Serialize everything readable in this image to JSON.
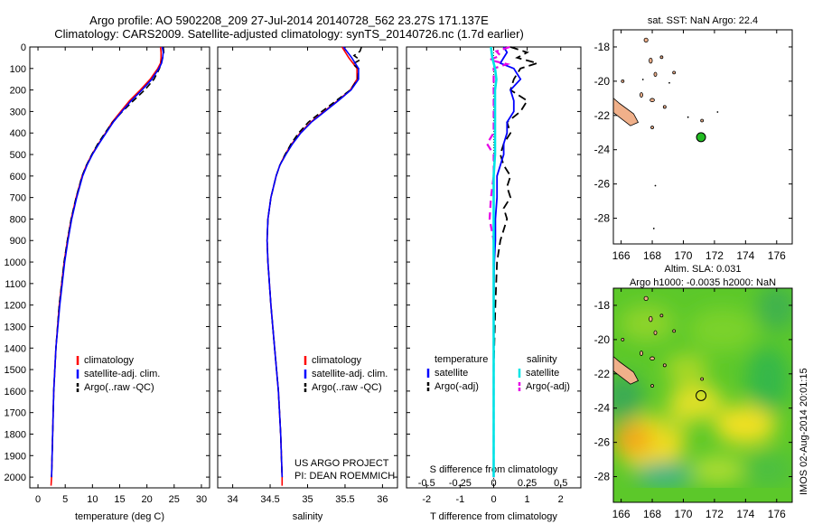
{
  "header": {
    "title_line1": "Argo profile: AO 5902208_209 27-Jul-2014 20140728_562 23.27S 171.137E",
    "title_line2": "Climatology: CARS2009. Satellite-adjusted climatology: synTS_20140726.nc (1.7d earlier)"
  },
  "depth_ticks": [
    "0",
    "100",
    "200",
    "300",
    "400",
    "500",
    "600",
    "700",
    "800",
    "900",
    "1000",
    "1100",
    "1200",
    "1300",
    "1400",
    "1500",
    "1600",
    "1700",
    "1800",
    "1900",
    "2000"
  ],
  "colors": {
    "climatology": "#ff0000",
    "satellite": "#0000ff",
    "argo": "#000000",
    "sal_satellite": "#00e5e5",
    "sal_argo": "#e600e6",
    "land": "#f0b08a"
  },
  "chart_data": [
    {
      "type": "line",
      "panel": "temperature",
      "xlabel": "temperature (deg C)",
      "xlim": [
        -1.5,
        31.5
      ],
      "ylim": [
        2050,
        0
      ],
      "xticks": [
        "0",
        "5",
        "10",
        "15",
        "20",
        "25",
        "30"
      ],
      "legend": [
        "climatology",
        "satellite-adj. clim.",
        "Argo(..raw -QC)"
      ],
      "series": [
        {
          "name": "climatology",
          "depth": [
            0,
            25,
            50,
            75,
            100,
            150,
            200,
            250,
            300,
            350,
            400,
            450,
            500,
            550,
            600,
            700,
            800,
            900,
            1000,
            1200,
            1400,
            1600,
            1800,
            2000,
            2040
          ],
          "values": [
            22.5,
            22.6,
            22.6,
            22.5,
            22.0,
            20.6,
            18.8,
            16.8,
            15.2,
            13.6,
            12.4,
            11.1,
            9.9,
            8.9,
            8.1,
            7.0,
            6.1,
            5.4,
            4.8,
            3.9,
            3.3,
            2.9,
            2.7,
            2.5,
            2.4
          ]
        },
        {
          "name": "satellite-adj. clim.",
          "depth": [
            0,
            25,
            50,
            75,
            100,
            150,
            200,
            250,
            300,
            350,
            400,
            450,
            500,
            550,
            600,
            700,
            800,
            900,
            1000,
            1200,
            1400,
            1600,
            1800,
            2000
          ],
          "values": [
            22.8,
            23.0,
            22.9,
            22.7,
            22.2,
            20.9,
            19.1,
            17.1,
            15.4,
            13.8,
            12.5,
            11.2,
            10.0,
            9.0,
            8.2,
            7.1,
            6.2,
            5.5,
            4.9,
            4.0,
            3.3,
            2.9,
            2.7,
            2.5
          ]
        },
        {
          "name": "Argo(..raw -QC)",
          "depth": [
            0,
            25,
            50,
            75,
            100,
            150,
            200,
            250,
            300,
            350,
            400,
            450,
            500,
            550,
            600,
            700,
            800,
            900,
            1000,
            1200,
            1400,
            1600,
            1800,
            2000
          ],
          "values": [
            23.0,
            23.1,
            22.9,
            22.6,
            22.3,
            21.3,
            19.6,
            17.5,
            15.5,
            13.7,
            12.3,
            11.0,
            9.9,
            8.9,
            8.1,
            7.0,
            6.1,
            5.4,
            4.8,
            3.9,
            3.3,
            2.9,
            2.7,
            2.5
          ]
        }
      ]
    },
    {
      "type": "line",
      "panel": "salinity",
      "xlabel": "salinity",
      "xlim": [
        33.8,
        36.2
      ],
      "ylim": [
        2050,
        0
      ],
      "xticks": [
        "34",
        "34.5",
        "35",
        "35.5",
        "36"
      ],
      "legend": [
        "climatology",
        "satellite-adj. clim.",
        "Argo(..raw -QC)"
      ],
      "annotation": [
        "US ARGO PROJECT",
        "PI: DEAN ROEMMICH"
      ],
      "series": [
        {
          "name": "climatology",
          "depth": [
            0,
            50,
            100,
            150,
            200,
            250,
            300,
            350,
            400,
            450,
            500,
            550,
            600,
            700,
            800,
            900,
            1000,
            1200,
            1400,
            1600,
            1800,
            2000,
            2040
          ],
          "values": [
            35.46,
            35.55,
            35.66,
            35.66,
            35.57,
            35.4,
            35.22,
            35.04,
            34.9,
            34.79,
            34.7,
            34.63,
            34.58,
            34.51,
            34.47,
            34.46,
            34.47,
            34.51,
            34.56,
            34.61,
            34.64,
            34.66,
            34.66
          ]
        },
        {
          "name": "satellite-adj. clim.",
          "depth": [
            0,
            50,
            100,
            150,
            200,
            250,
            300,
            350,
            400,
            450,
            500,
            550,
            600,
            700,
            800,
            900,
            1000,
            1200,
            1400,
            1600,
            1800,
            2000
          ],
          "values": [
            35.48,
            35.59,
            35.68,
            35.68,
            35.58,
            35.41,
            35.23,
            35.05,
            34.91,
            34.8,
            34.71,
            34.63,
            34.58,
            34.51,
            34.47,
            34.46,
            34.47,
            34.51,
            34.56,
            34.61,
            34.64,
            34.66
          ]
        },
        {
          "name": "Argo(..raw -QC)",
          "depth": [
            0,
            20,
            40,
            60,
            80,
            100,
            150,
            200,
            250,
            300,
            350,
            400,
            450,
            500,
            550,
            600,
            700,
            800,
            900,
            1000,
            1200,
            1400,
            1600,
            1800,
            2000
          ],
          "values": [
            35.72,
            35.7,
            35.62,
            35.7,
            35.6,
            35.68,
            35.67,
            35.57,
            35.38,
            35.19,
            35.01,
            34.88,
            34.78,
            34.7,
            34.63,
            34.58,
            34.51,
            34.47,
            34.46,
            34.47,
            34.51,
            34.56,
            34.61,
            34.64,
            34.66
          ]
        }
      ]
    },
    {
      "type": "line",
      "panel": "difference",
      "xlabel_top": "S difference from climatology",
      "xlabel": "T difference from climatology",
      "xlim": [
        -2.6,
        2.6
      ],
      "ylim": [
        2050,
        0
      ],
      "xticks_T": [
        "-2",
        "-1",
        "0",
        "1",
        "2"
      ],
      "xticks_S": [
        "-0.5",
        "-0.25",
        "0",
        "0.25",
        "0.5"
      ],
      "legend_T_header": "temperature",
      "legend_S_header": "salinity",
      "legend_T": [
        "satellite",
        "Argo(-adj)"
      ],
      "legend_S": [
        "satellite",
        "Argo(-adj)"
      ],
      "series": [
        {
          "name": "T satellite",
          "depth": [
            0,
            25,
            50,
            75,
            100,
            150,
            200,
            250,
            300,
            350,
            400,
            450,
            500,
            550,
            600,
            700,
            800,
            900,
            1000,
            1200,
            1500,
            2000
          ],
          "values": [
            0.3,
            0.4,
            0.3,
            0.2,
            0.6,
            0.8,
            0.5,
            0.6,
            0.6,
            0.4,
            0.4,
            0.3,
            0.3,
            0.2,
            0.1,
            0.1,
            0.05,
            0.05,
            0.02,
            0.0,
            0.0,
            0.0
          ]
        },
        {
          "name": "T Argo(-adj)",
          "depth": [
            0,
            25,
            50,
            75,
            100,
            150,
            200,
            250,
            300,
            350,
            400,
            450,
            500,
            550,
            600,
            650,
            700,
            750,
            800,
            850,
            900,
            1000,
            1200,
            1500,
            2000
          ],
          "values": [
            0.5,
            1.0,
            0.7,
            1.3,
            0.8,
            0.6,
            0.5,
            1.0,
            0.8,
            0.4,
            0.5,
            0.3,
            0.2,
            0.3,
            0.5,
            0.4,
            0.5,
            0.3,
            0.4,
            0.3,
            0.2,
            0.1,
            0.05,
            0.0,
            0.0
          ]
        },
        {
          "name": "S satellite",
          "depth": [
            0,
            50,
            100,
            150,
            200,
            300,
            400,
            500,
            600,
            800,
            1000,
            1500,
            2000
          ],
          "values": [
            -0.02,
            -0.01,
            0.01,
            0.02,
            0.01,
            0.01,
            0.01,
            0.01,
            0.0,
            0.0,
            0.0,
            0.0,
            0.0
          ]
        },
        {
          "name": "S Argo(-adj)",
          "depth": [
            0,
            20,
            40,
            60,
            80,
            100,
            150,
            200,
            300,
            400,
            450,
            500,
            600,
            700,
            800,
            900,
            1000,
            1200,
            1500,
            2000
          ],
          "values": [
            0.12,
            0.02,
            0.05,
            -0.03,
            0.1,
            0.0,
            0.0,
            0.0,
            0.0,
            0.0,
            -0.05,
            0.0,
            0.0,
            -0.02,
            -0.03,
            0.0,
            0.0,
            0.0,
            0.0,
            0.0
          ]
        }
      ]
    },
    {
      "type": "scatter",
      "panel": "map-sst",
      "title": "sat. SST: NaN Argo: 22.4",
      "xlim": [
        165.5,
        177
      ],
      "ylim": [
        -29.5,
        -17
      ],
      "xticks": [
        "166",
        "168",
        "170",
        "172",
        "174",
        "176"
      ],
      "yticks": [
        "-18",
        "-20",
        "-22",
        "-24",
        "-26",
        "-28"
      ],
      "point": {
        "lon": 171.137,
        "lat": -23.27
      }
    },
    {
      "type": "heatmap",
      "panel": "map-sla",
      "title_line1": "Altim. SLA: 0.031",
      "title_line2": "Argo h1000: -0.0035 h2000: NaN",
      "xlim": [
        165.5,
        177
      ],
      "ylim": [
        -29.5,
        -17
      ],
      "xticks": [
        "166",
        "168",
        "170",
        "172",
        "174",
        "176"
      ],
      "yticks": [
        "-18",
        "-20",
        "-22",
        "-24",
        "-26",
        "-28"
      ],
      "point": {
        "lon": 171.137,
        "lat": -23.27
      }
    }
  ],
  "footer_stamp": "IMOS 02-Aug-2014 20:01:15"
}
